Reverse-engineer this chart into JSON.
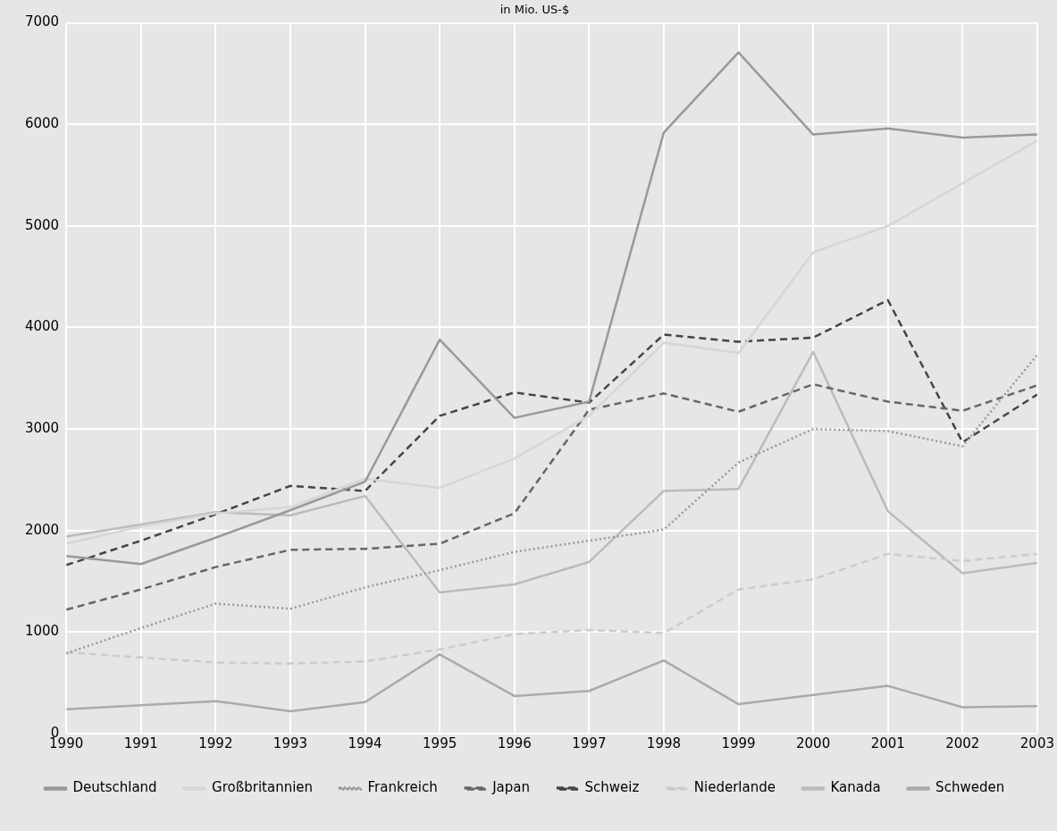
{
  "chart_data": {
    "type": "line",
    "title": "in Mio. US-$",
    "x": [
      1990,
      1991,
      1992,
      1993,
      1994,
      1995,
      1996,
      1997,
      1998,
      1999,
      2000,
      2001,
      2002,
      2003
    ],
    "xlim": [
      1990,
      2003
    ],
    "xticks": [
      1990,
      1991,
      1992,
      1993,
      1994,
      1995,
      1996,
      1997,
      1998,
      1999,
      2000,
      2001,
      2002,
      2003
    ],
    "ylim": [
      0,
      7000
    ],
    "yticks": [
      0,
      1000,
      2000,
      3000,
      4000,
      5000,
      6000,
      7000
    ],
    "grid": true,
    "legend": "bottom",
    "marker": "none",
    "series": [
      {
        "name": "Deutschland",
        "color": "#999999",
        "line_style": "solid",
        "values": [
          1750,
          1670,
          1930,
          2200,
          2480,
          3880,
          3110,
          3270,
          5920,
          6710,
          5900,
          5960,
          5870,
          5900
        ]
      },
      {
        "name": "Großbritannien",
        "color": "#d6d6d6",
        "line_style": "solid",
        "values": [
          1870,
          2040,
          2170,
          2230,
          2510,
          2420,
          2710,
          3130,
          3850,
          3750,
          4740,
          5000,
          5420,
          5840
        ]
      },
      {
        "name": "Frankreich",
        "color": "#999999",
        "line_style": "dotted",
        "values": [
          790,
          1040,
          1280,
          1230,
          1440,
          1610,
          1790,
          1900,
          2010,
          2670,
          3000,
          2980,
          2830,
          3730
        ]
      },
      {
        "name": "Japan",
        "color": "#666666",
        "line_style": "dashed",
        "values": [
          1220,
          1420,
          1640,
          1810,
          1820,
          1870,
          2170,
          3190,
          3350,
          3170,
          3440,
          3270,
          3180,
          3430
        ]
      },
      {
        "name": "Schweiz",
        "color": "#444444",
        "line_style": "dashed",
        "values": [
          1660,
          1900,
          2160,
          2440,
          2390,
          3130,
          3360,
          3260,
          3930,
          3860,
          3900,
          4270,
          2870,
          3340
        ]
      },
      {
        "name": "Niederlande",
        "color": "#cccccc",
        "line_style": "dashed",
        "values": [
          800,
          750,
          700,
          690,
          710,
          830,
          980,
          1020,
          990,
          1420,
          1520,
          1770,
          1700,
          1770
        ]
      },
      {
        "name": "Kanada",
        "color": "#bbbbbb",
        "line_style": "solid",
        "values": [
          1940,
          2060,
          2180,
          2150,
          2340,
          1390,
          1470,
          1690,
          2390,
          2410,
          3760,
          2190,
          1580,
          1680
        ]
      },
      {
        "name": "Schweden",
        "color": "#aaaaaa",
        "line_style": "solid",
        "values": [
          240,
          280,
          320,
          220,
          310,
          780,
          370,
          420,
          720,
          290,
          380,
          470,
          260,
          270
        ]
      }
    ]
  }
}
